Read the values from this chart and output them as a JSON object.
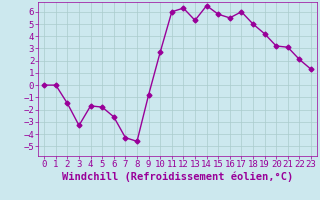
{
  "x": [
    0,
    1,
    2,
    3,
    4,
    5,
    6,
    7,
    8,
    9,
    10,
    11,
    12,
    13,
    14,
    15,
    16,
    17,
    18,
    19,
    20,
    21,
    22,
    23
  ],
  "y": [
    0,
    0,
    -1.5,
    -3.3,
    -1.7,
    -1.8,
    -2.6,
    -4.3,
    -4.6,
    -0.8,
    2.7,
    6.0,
    6.3,
    5.3,
    6.5,
    5.8,
    5.5,
    6.0,
    5.0,
    4.2,
    3.2,
    3.1,
    2.1,
    1.3
  ],
  "line_color": "#990099",
  "marker": "D",
  "marker_size": 2.5,
  "line_width": 1.0,
  "bg_color": "#cce8ee",
  "grid_color": "#aacccc",
  "xlabel": "Windchill (Refroidissement éolien,°C)",
  "xlabel_color": "#990099",
  "tick_color": "#990099",
  "ylim": [
    -5.8,
    6.8
  ],
  "xlim": [
    -0.5,
    23.5
  ],
  "yticks": [
    -5,
    -4,
    -3,
    -2,
    -1,
    0,
    1,
    2,
    3,
    4,
    5,
    6
  ],
  "xticks": [
    0,
    1,
    2,
    3,
    4,
    5,
    6,
    7,
    8,
    9,
    10,
    11,
    12,
    13,
    14,
    15,
    16,
    17,
    18,
    19,
    20,
    21,
    22,
    23
  ],
  "tick_fontsize": 6.5,
  "xlabel_fontsize": 7.5
}
